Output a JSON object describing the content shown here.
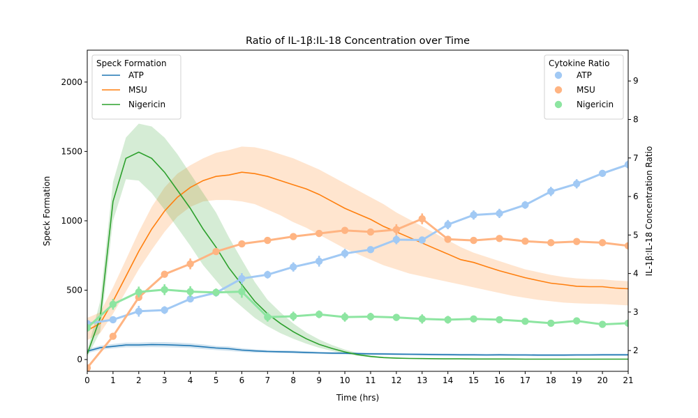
{
  "chart_data": {
    "type": "line",
    "title": "Ratio of IL-1β:IL-18 Concentration over Time",
    "xlabel": "Time (hrs)",
    "ylabel_left": "Speck Formation",
    "ylabel_right": "IL-1β:IL-18 Concentration Ratio",
    "xlim": [
      0,
      21
    ],
    "ylim_left": [
      -85,
      2230
    ],
    "ylim_right": [
      1.46,
      9.8
    ],
    "x_ticks": [
      "0",
      "1",
      "2",
      "3",
      "4",
      "5",
      "6",
      "7",
      "8",
      "9",
      "10",
      "11",
      "12",
      "13",
      "14",
      "15",
      "16",
      "17",
      "18",
      "19",
      "20",
      "21"
    ],
    "y_left_ticks": [
      "0",
      "500",
      "1000",
      "1500",
      "2000"
    ],
    "y_right_ticks": [
      "2",
      "3",
      "4",
      "5",
      "6",
      "7",
      "8",
      "9"
    ],
    "legend_left": {
      "title": "Speck Formation",
      "position": "top-left",
      "entries": [
        "ATP",
        "MSU",
        "Nigericin"
      ]
    },
    "legend_right": {
      "title": "Cytokine Ratio",
      "position": "top-right",
      "entries": [
        "ATP",
        "MSU",
        "Nigericin"
      ]
    },
    "speck_formation": {
      "x": [
        0,
        0.5,
        1,
        1.5,
        2,
        2.5,
        3,
        3.5,
        4,
        4.5,
        5,
        5.5,
        6,
        6.5,
        7,
        7.5,
        8,
        8.5,
        9,
        9.5,
        10,
        10.5,
        11,
        11.5,
        12,
        12.5,
        13,
        13.5,
        14,
        14.5,
        15,
        15.5,
        16,
        16.5,
        17,
        17.5,
        18,
        18.5,
        19,
        19.5,
        20,
        20.5,
        21
      ],
      "series": [
        {
          "name": "ATP",
          "color": "#1f77b4",
          "mean": [
            60,
            85,
            95,
            105,
            105,
            108,
            107,
            104,
            100,
            92,
            83,
            78,
            68,
            62,
            58,
            56,
            54,
            51,
            48,
            46,
            45,
            43,
            41,
            40,
            39,
            38,
            37,
            36,
            35,
            34,
            34,
            33,
            34,
            33,
            33,
            32,
            32,
            32,
            33,
            33,
            34,
            34,
            34
          ],
          "lower": [
            45,
            70,
            80,
            88,
            88,
            90,
            88,
            86,
            83,
            75,
            68,
            62,
            55,
            50,
            48,
            46,
            44,
            42,
            40,
            38,
            37,
            35,
            33,
            32,
            31,
            30,
            29,
            28,
            27,
            26,
            26,
            25,
            26,
            25,
            25,
            24,
            24,
            24,
            25,
            25,
            26,
            26,
            26
          ],
          "upper": [
            75,
            100,
            112,
            122,
            122,
            126,
            126,
            122,
            117,
            109,
            98,
            94,
            81,
            74,
            68,
            66,
            64,
            60,
            56,
            54,
            53,
            51,
            49,
            48,
            47,
            46,
            45,
            44,
            43,
            42,
            42,
            41,
            42,
            41,
            41,
            40,
            40,
            40,
            41,
            41,
            42,
            42,
            42
          ]
        },
        {
          "name": "MSU",
          "color": "#ff7f0e",
          "mean": [
            210,
            260,
            420,
            600,
            780,
            940,
            1070,
            1170,
            1240,
            1290,
            1320,
            1330,
            1350,
            1340,
            1320,
            1290,
            1260,
            1230,
            1190,
            1140,
            1090,
            1050,
            1010,
            960,
            920,
            880,
            840,
            800,
            760,
            720,
            700,
            670,
            640,
            615,
            590,
            570,
            550,
            540,
            528,
            525,
            525,
            515,
            510
          ],
          "lower": [
            140,
            190,
            330,
            490,
            650,
            790,
            920,
            1030,
            1100,
            1140,
            1150,
            1150,
            1140,
            1120,
            1080,
            1040,
            990,
            950,
            900,
            850,
            800,
            760,
            720,
            680,
            650,
            620,
            600,
            580,
            560,
            540,
            520,
            500,
            480,
            460,
            445,
            430,
            420,
            410,
            405,
            402,
            400,
            395,
            390
          ],
          "upper": [
            300,
            340,
            520,
            720,
            920,
            1100,
            1240,
            1340,
            1400,
            1450,
            1490,
            1510,
            1535,
            1530,
            1510,
            1480,
            1450,
            1410,
            1370,
            1320,
            1270,
            1220,
            1170,
            1120,
            1060,
            1010,
            960,
            910,
            860,
            810,
            770,
            740,
            710,
            680,
            650,
            630,
            610,
            595,
            585,
            580,
            578,
            570,
            565
          ]
        },
        {
          "name": "Nigericin",
          "color": "#2ca02c",
          "mean": [
            40,
            300,
            1140,
            1450,
            1495,
            1450,
            1350,
            1220,
            1090,
            940,
            810,
            660,
            540,
            420,
            330,
            260,
            200,
            150,
            110,
            80,
            55,
            35,
            22,
            14,
            10,
            8,
            7,
            6,
            5,
            5,
            4,
            4,
            4,
            4,
            3,
            3,
            3,
            3,
            3,
            3,
            3,
            3,
            3
          ],
          "lower": [
            20,
            200,
            1000,
            1300,
            1290,
            1200,
            1080,
            950,
            820,
            680,
            570,
            460,
            380,
            300,
            240,
            190,
            150,
            115,
            85,
            62,
            42,
            27,
            16,
            10,
            7,
            5,
            4,
            4,
            3,
            3,
            3,
            3,
            3,
            3,
            2,
            2,
            2,
            2,
            2,
            2,
            2,
            2,
            2
          ],
          "upper": [
            60,
            420,
            1280,
            1600,
            1700,
            1680,
            1600,
            1480,
            1340,
            1200,
            1060,
            880,
            720,
            560,
            430,
            340,
            260,
            195,
            145,
            105,
            72,
            47,
            30,
            19,
            14,
            11,
            10,
            9,
            8,
            7,
            6,
            6,
            6,
            6,
            5,
            5,
            5,
            5,
            5,
            5,
            5,
            5,
            5
          ]
        }
      ]
    },
    "cytokine_ratio": {
      "x": [
        0,
        1,
        2,
        3,
        4,
        5,
        6,
        7,
        8,
        9,
        10,
        11,
        12,
        13,
        14,
        15,
        16,
        17,
        18,
        19,
        20,
        21
      ],
      "series": [
        {
          "name": "ATP",
          "color": "#a1c9f4",
          "values": [
            2.7,
            2.8,
            3.02,
            3.05,
            3.34,
            3.5,
            3.87,
            3.97,
            4.17,
            4.32,
            4.52,
            4.62,
            4.88,
            4.87,
            5.27,
            5.52,
            5.56,
            5.78,
            6.13,
            6.33,
            6.6,
            6.83
          ],
          "err": [
            0.08,
            0.08,
            0.14,
            0.1,
            0.06,
            0.1,
            0.14,
            0.1,
            0.12,
            0.14,
            0.12,
            0.08,
            0.12,
            0.08,
            0.12,
            0.12,
            0.12,
            0.1,
            0.12,
            0.12,
            0.08,
            0.1
          ]
        },
        {
          "name": "MSU",
          "color": "#ffb482",
          "values": [
            1.55,
            2.37,
            3.38,
            3.98,
            4.25,
            4.57,
            4.77,
            4.86,
            4.96,
            5.04,
            5.12,
            5.08,
            5.14,
            5.42,
            4.89,
            4.86,
            4.91,
            4.84,
            4.8,
            4.83,
            4.8,
            4.72
          ],
          "err": [
            0.06,
            0.06,
            0.06,
            0.06,
            0.14,
            0.08,
            0.06,
            0.08,
            0.06,
            0.08,
            0.06,
            0.06,
            0.14,
            0.14,
            0.06,
            0.06,
            0.08,
            0.06,
            0.06,
            0.06,
            0.06,
            0.06
          ]
        },
        {
          "name": "Nigericin",
          "color": "#8de5a1",
          "values": [
            2.59,
            3.2,
            3.52,
            3.58,
            3.53,
            3.51,
            3.53,
            2.87,
            2.89,
            2.94,
            2.87,
            2.88,
            2.86,
            2.82,
            2.8,
            2.82,
            2.8,
            2.76,
            2.71,
            2.77,
            2.68,
            2.71
          ],
          "err": [
            0.1,
            0.14,
            0.14,
            0.14,
            0.14,
            0.1,
            0.16,
            0.12,
            0.12,
            0.1,
            0.12,
            0.1,
            0.08,
            0.12,
            0.1,
            0.06,
            0.08,
            0.08,
            0.08,
            0.08,
            0.08,
            0.08
          ]
        }
      ]
    }
  }
}
